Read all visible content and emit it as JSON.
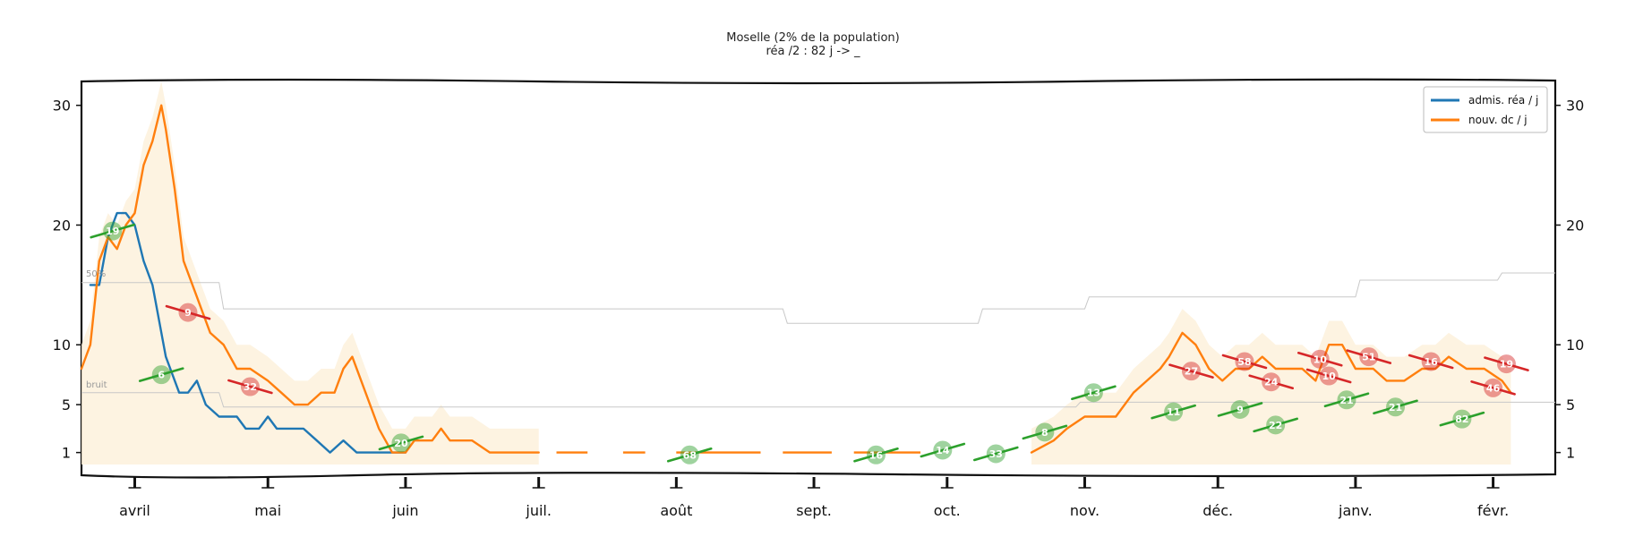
{
  "chart_data": {
    "type": "line",
    "title": "Moselle (2% de la population)",
    "subtitle": "réa /2 : 82 j -> _",
    "xlabel": "",
    "ylabel": "",
    "ylim": [
      0,
      32
    ],
    "y_ticks": [
      1,
      5,
      10,
      20,
      30
    ],
    "x_range": [
      "2020-03-20",
      "2021-02-15"
    ],
    "x_ticks": [
      {
        "date": "2020-04-01",
        "label": "avril"
      },
      {
        "date": "2020-05-01",
        "label": "mai"
      },
      {
        "date": "2020-06-01",
        "label": "juin"
      },
      {
        "date": "2020-07-01",
        "label": "juil."
      },
      {
        "date": "2020-08-01",
        "label": "août"
      },
      {
        "date": "2020-09-01",
        "label": "sept."
      },
      {
        "date": "2020-10-01",
        "label": "oct."
      },
      {
        "date": "2020-11-01",
        "label": "nov."
      },
      {
        "date": "2020-12-01",
        "label": "déc."
      },
      {
        "date": "2021-01-01",
        "label": "janv."
      },
      {
        "date": "2021-02-01",
        "label": "févr."
      }
    ],
    "grid": false,
    "legend_position": "top-right",
    "threshold_labels": {
      "upper": "50%",
      "lower": "bruit"
    },
    "series": [
      {
        "name": "admis. réa / j",
        "color": "#1f77b4",
        "points": [
          [
            "2020-03-22",
            15
          ],
          [
            "2020-03-24",
            15
          ],
          [
            "2020-03-26",
            19
          ],
          [
            "2020-03-28",
            21
          ],
          [
            "2020-03-30",
            21
          ],
          [
            "2020-04-01",
            20
          ],
          [
            "2020-04-03",
            17
          ],
          [
            "2020-04-05",
            15
          ],
          [
            "2020-04-08",
            9
          ],
          [
            "2020-04-11",
            6
          ],
          [
            "2020-04-13",
            6
          ],
          [
            "2020-04-15",
            7
          ],
          [
            "2020-04-17",
            5
          ],
          [
            "2020-04-20",
            4
          ],
          [
            "2020-04-24",
            4
          ],
          [
            "2020-04-26",
            3
          ],
          [
            "2020-04-29",
            3
          ],
          [
            "2020-05-01",
            4
          ],
          [
            "2020-05-03",
            3
          ],
          [
            "2020-05-06",
            3
          ],
          [
            "2020-05-09",
            3
          ],
          [
            "2020-05-12",
            2
          ],
          [
            "2020-05-15",
            1
          ],
          [
            "2020-05-18",
            2
          ],
          [
            "2020-05-21",
            1
          ],
          [
            "2020-05-25",
            1
          ],
          [
            "2020-05-28",
            1
          ],
          [
            "2020-06-01",
            1
          ]
        ]
      },
      {
        "name": "nouv. dc / j",
        "color": "#ff7f0e",
        "points": [
          [
            "2020-03-20",
            8
          ],
          [
            "2020-03-22",
            10
          ],
          [
            "2020-03-24",
            17
          ],
          [
            "2020-03-26",
            19
          ],
          [
            "2020-03-28",
            18
          ],
          [
            "2020-03-30",
            20
          ],
          [
            "2020-04-01",
            21
          ],
          [
            "2020-04-03",
            25
          ],
          [
            "2020-04-05",
            27
          ],
          [
            "2020-04-07",
            30
          ],
          [
            "2020-04-08",
            28
          ],
          [
            "2020-04-10",
            23
          ],
          [
            "2020-04-12",
            17
          ],
          [
            "2020-04-15",
            14
          ],
          [
            "2020-04-18",
            11
          ],
          [
            "2020-04-21",
            10
          ],
          [
            "2020-04-24",
            8
          ],
          [
            "2020-04-27",
            8
          ],
          [
            "2020-05-01",
            7
          ],
          [
            "2020-05-04",
            6
          ],
          [
            "2020-05-07",
            5
          ],
          [
            "2020-05-10",
            5
          ],
          [
            "2020-05-13",
            6
          ],
          [
            "2020-05-16",
            6
          ],
          [
            "2020-05-18",
            8
          ],
          [
            "2020-05-20",
            9
          ],
          [
            "2020-05-23",
            6
          ],
          [
            "2020-05-26",
            3
          ],
          [
            "2020-05-29",
            1
          ],
          [
            "2020-06-01",
            1
          ],
          [
            "2020-06-03",
            2
          ],
          [
            "2020-06-07",
            2
          ],
          [
            "2020-06-09",
            3
          ],
          [
            "2020-06-11",
            2
          ],
          [
            "2020-06-16",
            2
          ],
          [
            "2020-06-20",
            1
          ],
          [
            "2020-06-25",
            1
          ],
          [
            "2020-07-01",
            1
          ],
          [
            "2020-10-20",
            1
          ],
          [
            "2020-10-25",
            2
          ],
          [
            "2020-10-28",
            3
          ],
          [
            "2020-11-01",
            4
          ],
          [
            "2020-11-04",
            4
          ],
          [
            "2020-11-08",
            4
          ],
          [
            "2020-11-12",
            6
          ],
          [
            "2020-11-15",
            7
          ],
          [
            "2020-11-18",
            8
          ],
          [
            "2020-11-20",
            9
          ],
          [
            "2020-11-23",
            11
          ],
          [
            "2020-11-26",
            10
          ],
          [
            "2020-11-29",
            8
          ],
          [
            "2020-12-02",
            7
          ],
          [
            "2020-12-05",
            8
          ],
          [
            "2020-12-08",
            8
          ],
          [
            "2020-12-11",
            9
          ],
          [
            "2020-12-14",
            8
          ],
          [
            "2020-12-17",
            8
          ],
          [
            "2020-12-20",
            8
          ],
          [
            "2020-12-23",
            7
          ],
          [
            "2020-12-26",
            10
          ],
          [
            "2020-12-29",
            10
          ],
          [
            "2021-01-01",
            8
          ],
          [
            "2021-01-05",
            8
          ],
          [
            "2021-01-08",
            7
          ],
          [
            "2021-01-12",
            7
          ],
          [
            "2021-01-16",
            8
          ],
          [
            "2021-01-19",
            8
          ],
          [
            "2021-01-22",
            9
          ],
          [
            "2021-01-26",
            8
          ],
          [
            "2021-01-30",
            8
          ],
          [
            "2021-02-03",
            7
          ],
          [
            "2021-02-05",
            6
          ]
        ]
      }
    ],
    "trend_bubbles": [
      {
        "date": "2020-03-27",
        "value": 19.5,
        "label": "19",
        "color": "#2ca02c"
      },
      {
        "date": "2020-04-07",
        "value": 7.5,
        "label": "6",
        "color": "#2ca02c"
      },
      {
        "date": "2020-04-13",
        "value": 12.7,
        "label": "9",
        "color": "#d62728"
      },
      {
        "date": "2020-04-27",
        "value": 6.5,
        "label": "32",
        "color": "#d62728"
      },
      {
        "date": "2020-05-31",
        "value": 1.8,
        "label": "20",
        "color": "#2ca02c"
      },
      {
        "date": "2020-08-04",
        "value": 0.8,
        "label": "68",
        "color": "#2ca02c"
      },
      {
        "date": "2020-09-15",
        "value": 0.8,
        "label": "16",
        "color": "#2ca02c"
      },
      {
        "date": "2020-09-30",
        "value": 1.2,
        "label": "14",
        "color": "#2ca02c"
      },
      {
        "date": "2020-10-12",
        "value": 0.9,
        "label": "33",
        "color": "#2ca02c"
      },
      {
        "date": "2020-10-23",
        "value": 2.7,
        "label": "8",
        "color": "#2ca02c"
      },
      {
        "date": "2020-11-03",
        "value": 6.0,
        "label": "13",
        "color": "#2ca02c"
      },
      {
        "date": "2020-11-21",
        "value": 4.4,
        "label": "11",
        "color": "#2ca02c"
      },
      {
        "date": "2020-11-25",
        "value": 7.8,
        "label": "27",
        "color": "#d62728"
      },
      {
        "date": "2020-12-06",
        "value": 4.6,
        "label": "9",
        "color": "#2ca02c"
      },
      {
        "date": "2020-12-07",
        "value": 8.6,
        "label": "58",
        "color": "#d62728"
      },
      {
        "date": "2020-12-13",
        "value": 6.9,
        "label": "24",
        "color": "#d62728"
      },
      {
        "date": "2020-12-14",
        "value": 3.3,
        "label": "22",
        "color": "#2ca02c"
      },
      {
        "date": "2020-12-24",
        "value": 8.8,
        "label": "10",
        "color": "#d62728"
      },
      {
        "date": "2020-12-26",
        "value": 7.4,
        "label": "10",
        "color": "#d62728"
      },
      {
        "date": "2020-12-30",
        "value": 5.4,
        "label": "21",
        "color": "#2ca02c"
      },
      {
        "date": "2021-01-04",
        "value": 9.0,
        "label": "51",
        "color": "#d62728"
      },
      {
        "date": "2021-01-10",
        "value": 4.8,
        "label": "21",
        "color": "#2ca02c"
      },
      {
        "date": "2021-01-18",
        "value": 8.6,
        "label": "16",
        "color": "#d62728"
      },
      {
        "date": "2021-01-25",
        "value": 3.8,
        "label": "82",
        "color": "#2ca02c"
      },
      {
        "date": "2021-02-01",
        "value": 6.4,
        "label": "46",
        "color": "#d62728"
      },
      {
        "date": "2021-02-04",
        "value": 8.4,
        "label": "19",
        "color": "#d62728"
      }
    ]
  }
}
